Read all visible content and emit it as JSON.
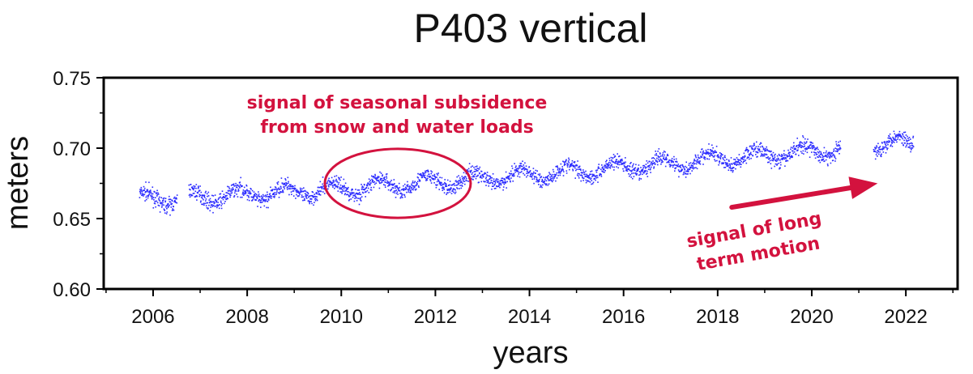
{
  "chart_data": {
    "type": "scatter",
    "title": "P403 vertical",
    "xlabel": "years",
    "ylabel": "meters",
    "xlim": [
      2004.95,
      2023.1
    ],
    "ylim": [
      0.6,
      0.75
    ],
    "xticks": [
      "2006",
      "2008",
      "2010",
      "2012",
      "2014",
      "2016",
      "2018",
      "2020",
      "2022"
    ],
    "yticks": [
      "0.60",
      "0.65",
      "0.70",
      "0.75"
    ],
    "grid": false,
    "point_color": "#2b2bff",
    "annotation_color": "#d3123e",
    "series": [
      {
        "segments": [
          [
            2005.7,
            2006.5
          ],
          [
            2006.75,
            2022.15
          ]
        ],
        "gap": [
          2020.6,
          2021.3
        ],
        "trend_start": 0.664,
        "trend_end": 0.705,
        "seasonal_amplitude": 0.005
      }
    ],
    "annotations": [
      {
        "lines": [
          "signal of seasonal subsidence",
          "from snow and water loads"
        ],
        "ellipse_center": [
          2011.2,
          0.675
        ],
        "ellipse_radius": [
          1.55,
          0.0245
        ]
      },
      {
        "lines": [
          "signal of long",
          "term motion"
        ],
        "arrow_from": [
          2018.3,
          0.658
        ],
        "arrow_to": [
          2021.4,
          0.675
        ]
      }
    ]
  }
}
